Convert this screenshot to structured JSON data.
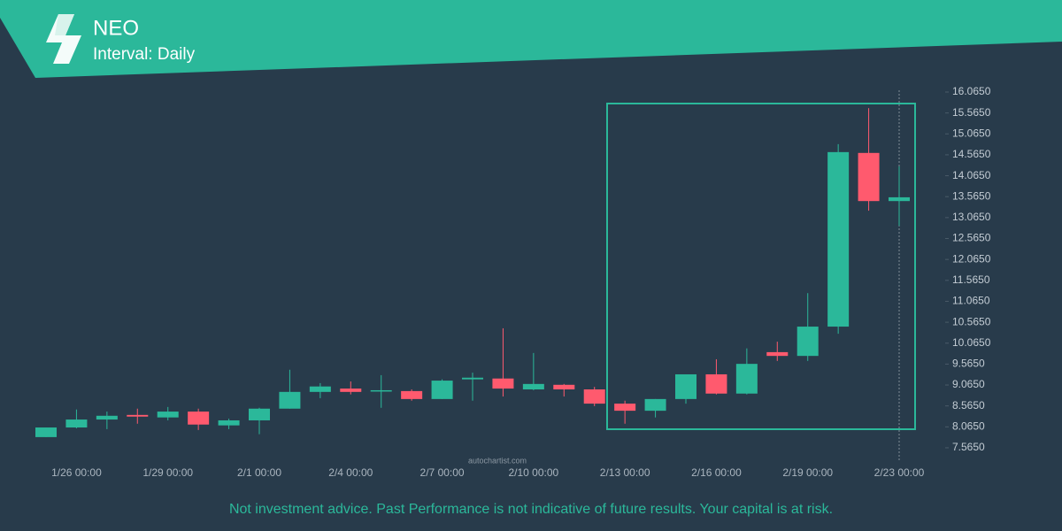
{
  "chart_data": {
    "type": "candlestick",
    "title": "NEO",
    "subtitle": "Interval: Daily",
    "watermark": "autochartist.com",
    "disclaimer": "Not investment advice. Past Performance is not indicative of future results. Your capital is at risk.",
    "categories": [
      null,
      "1/26 00:00",
      null,
      null,
      "1/29 00:00",
      null,
      null,
      "2/1 00:00",
      null,
      null,
      "2/4 00:00",
      null,
      null,
      "2/7 00:00",
      null,
      null,
      "2/10 00:00",
      null,
      null,
      "2/13 00:00",
      null,
      null,
      "2/16 00:00",
      null,
      null,
      "2/19 00:00",
      null,
      null,
      "2/23 00:00"
    ],
    "open": [
      7.82,
      8.05,
      8.24,
      8.35,
      8.29,
      8.43,
      8.1,
      8.22,
      8.5,
      8.9,
      8.98,
      8.93,
      8.92,
      8.73,
      9.2,
      9.22,
      8.96,
      9.07,
      8.96,
      8.62,
      8.45,
      8.73,
      9.32,
      8.86,
      9.85,
      9.76,
      10.46,
      14.61,
      13.46
    ],
    "high": [
      8.05,
      8.48,
      8.43,
      8.5,
      8.54,
      8.5,
      8.26,
      8.52,
      9.43,
      9.11,
      9.15,
      9.3,
      8.96,
      9.2,
      9.36,
      10.42,
      9.83,
      9.09,
      9.02,
      8.69,
      8.73,
      9.32,
      9.68,
      9.94,
      10.1,
      11.26,
      14.82,
      15.68,
      14.29
    ],
    "low": [
      7.82,
      8.03,
      8.01,
      8.14,
      8.22,
      7.99,
      8.01,
      7.89,
      8.5,
      8.75,
      8.84,
      8.52,
      8.69,
      8.73,
      8.69,
      8.79,
      8.94,
      8.79,
      8.56,
      8.14,
      8.29,
      8.62,
      8.84,
      8.84,
      9.64,
      9.64,
      10.29,
      13.23,
      12.87
    ],
    "close": [
      8.05,
      8.24,
      8.33,
      8.31,
      8.43,
      8.12,
      8.22,
      8.5,
      8.9,
      9.03,
      8.9,
      8.94,
      8.73,
      9.17,
      9.24,
      8.98,
      9.09,
      8.96,
      8.62,
      8.45,
      8.73,
      9.32,
      8.86,
      9.57,
      9.76,
      10.46,
      14.63,
      13.46,
      13.55
    ],
    "up_color": "#2bb89a",
    "down_color": "#ff5a6e",
    "ylim": [
      7.3,
      16.25
    ],
    "yticks": [
      {
        "value": 16.065,
        "label": "16.0650"
      },
      {
        "value": 15.565,
        "label": "15.5650"
      },
      {
        "value": 15.065,
        "label": "15.0650"
      },
      {
        "value": 14.565,
        "label": "14.5650"
      },
      {
        "value": 14.065,
        "label": "14.0650"
      },
      {
        "value": 13.565,
        "label": "13.5650"
      },
      {
        "value": 13.065,
        "label": "13.0650"
      },
      {
        "value": 12.565,
        "label": "12.5650"
      },
      {
        "value": 12.065,
        "label": "12.0650"
      },
      {
        "value": 11.565,
        "label": "11.5650"
      },
      {
        "value": 11.065,
        "label": "11.0650"
      },
      {
        "value": 10.565,
        "label": "10.5650"
      },
      {
        "value": 10.065,
        "label": "10.0650"
      },
      {
        "value": 9.565,
        "label": "9.5650"
      },
      {
        "value": 9.065,
        "label": "9.0650"
      },
      {
        "value": 8.565,
        "label": "8.5650"
      },
      {
        "value": 8.065,
        "label": "8.0650"
      },
      {
        "value": 7.565,
        "label": "7.5650"
      }
    ]
  }
}
